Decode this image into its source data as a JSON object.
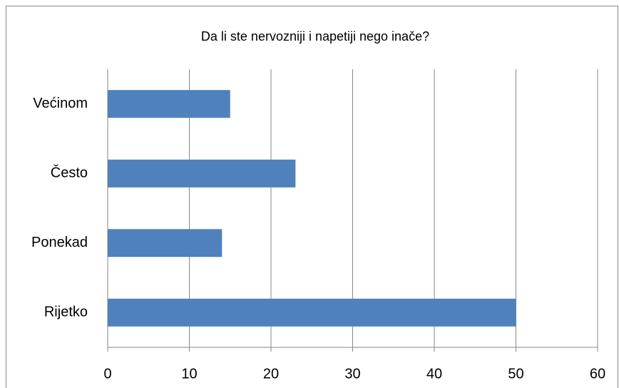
{
  "chart_data": {
    "type": "barh",
    "title": "Da li ste nervozniji i napetiji nego inače?",
    "categories": [
      "Većinom",
      "Često",
      "Ponekad",
      "Rijetko"
    ],
    "values": [
      15,
      23,
      14,
      50
    ],
    "color": "#4f81bd",
    "xlim": [
      0,
      60
    ],
    "xticks": [
      0,
      10,
      20,
      30,
      40,
      50,
      60
    ],
    "grid": true
  }
}
